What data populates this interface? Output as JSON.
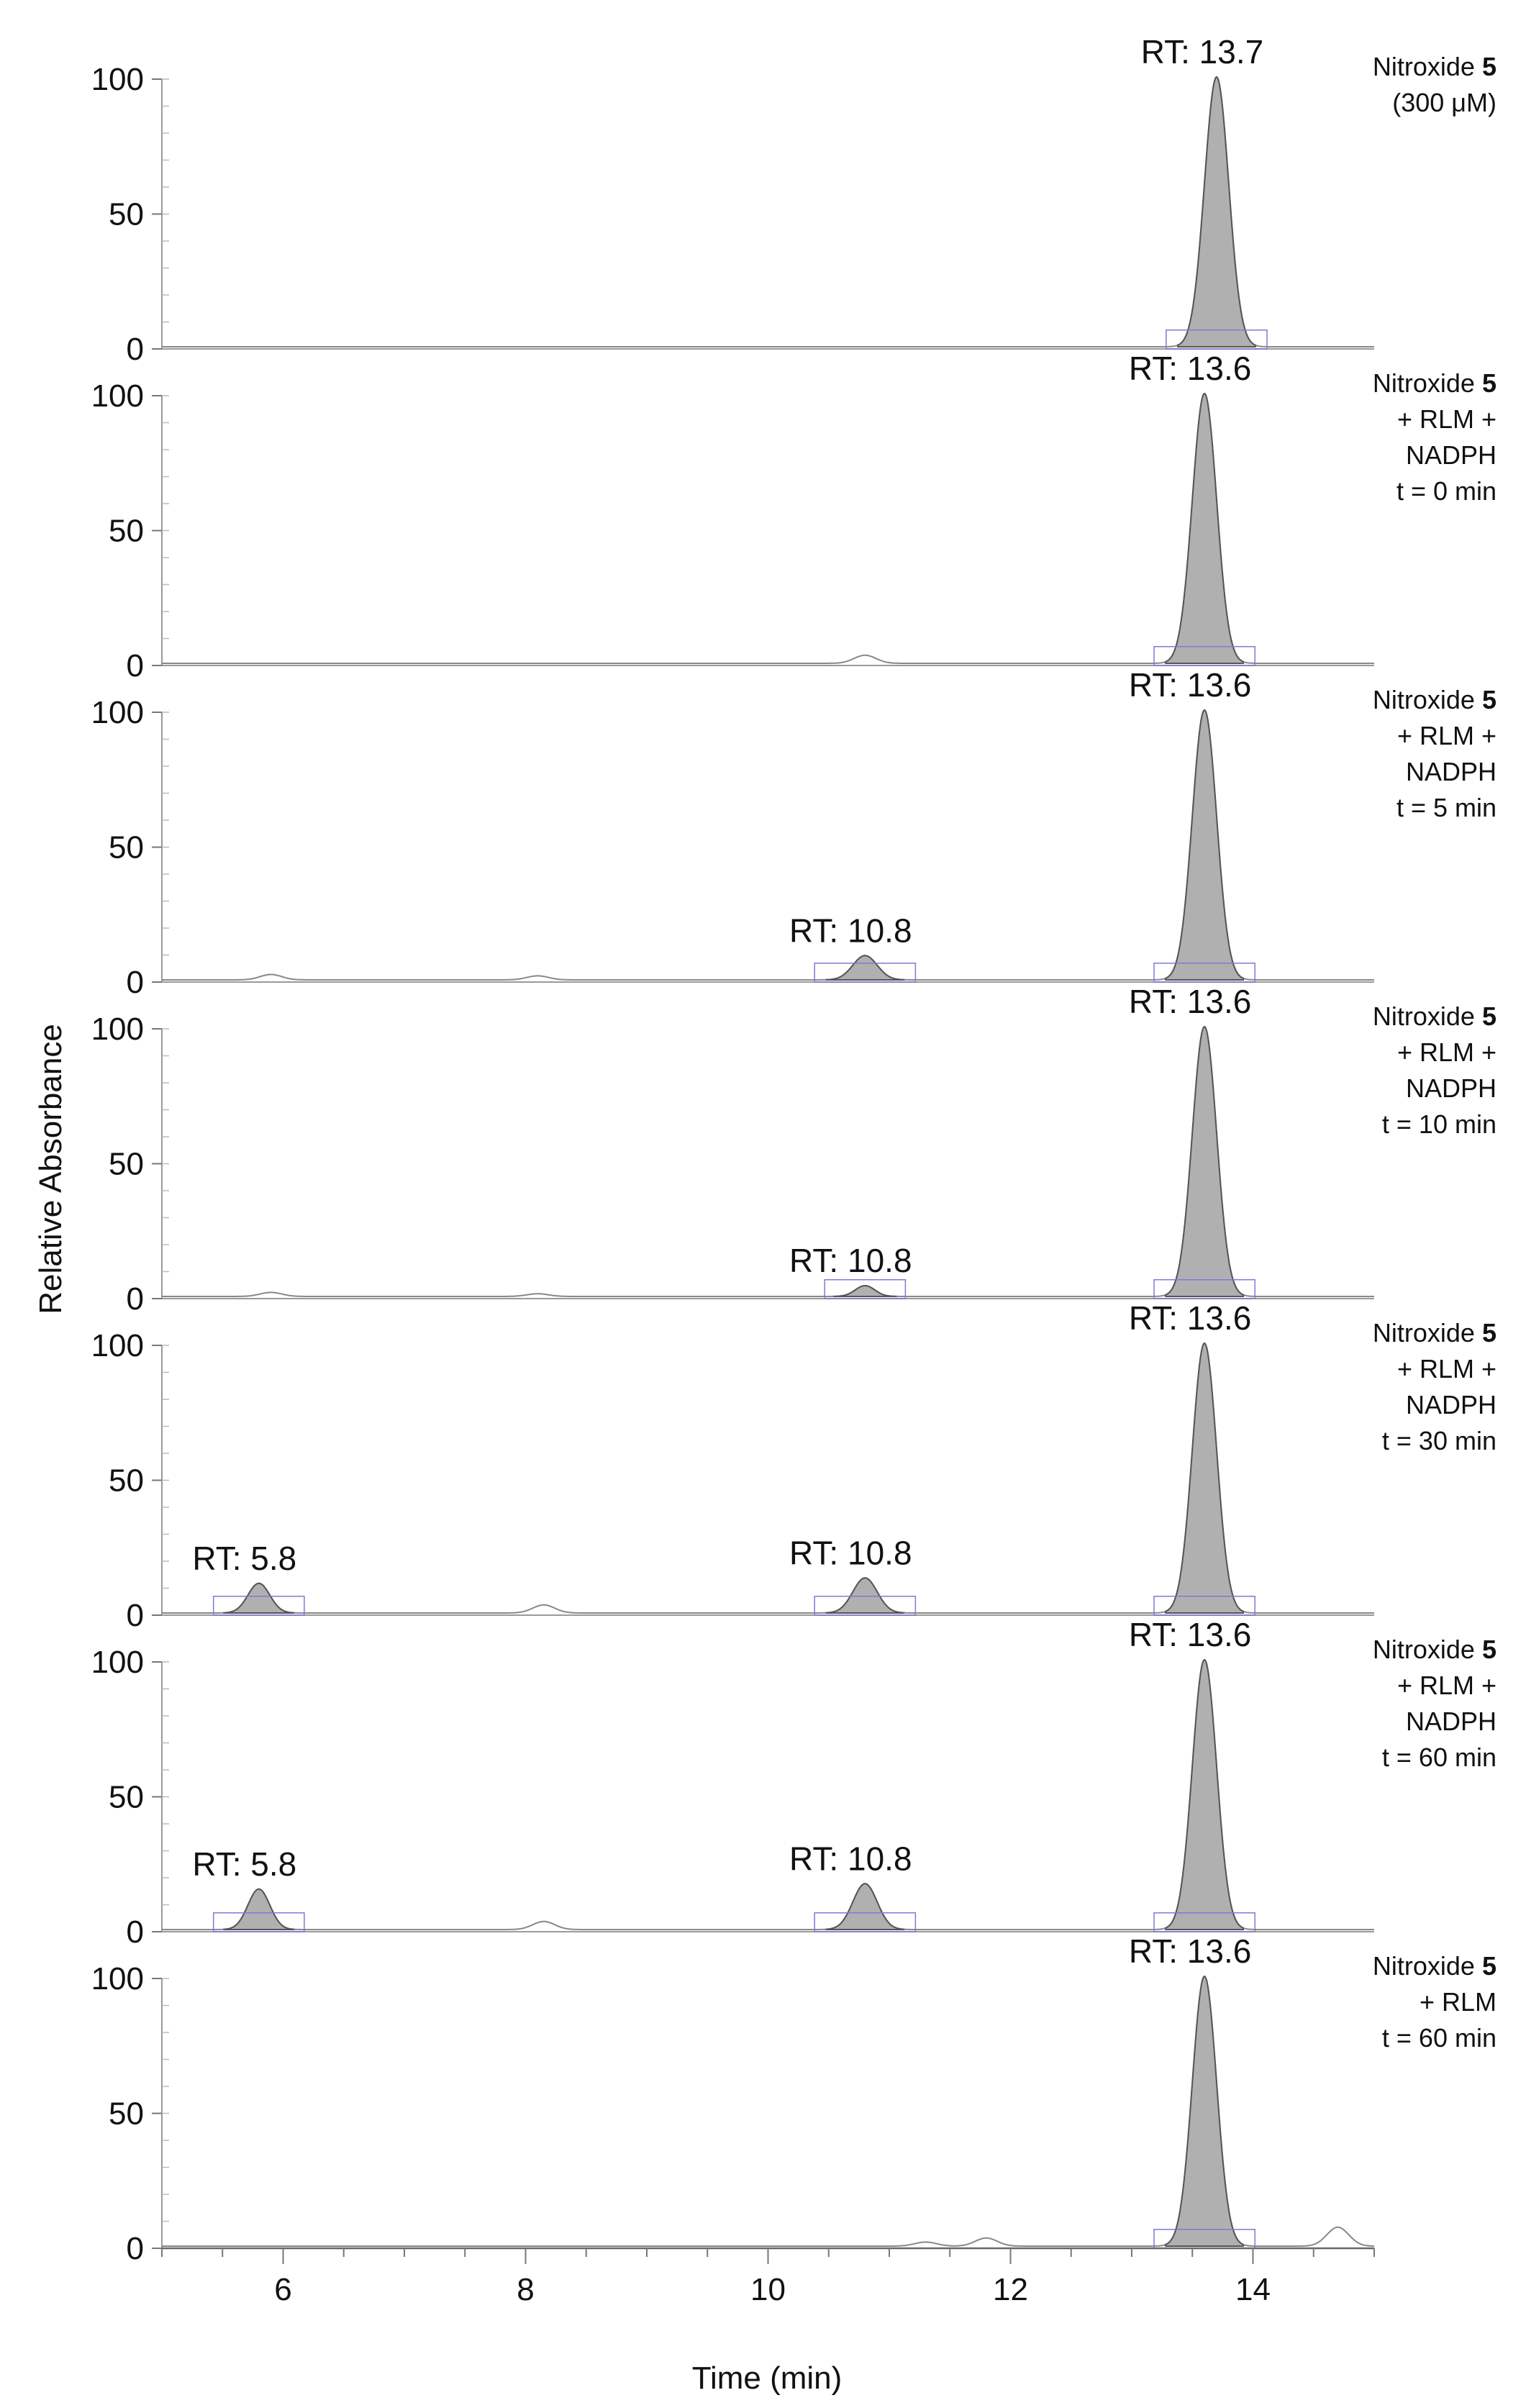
{
  "chart_data": {
    "type": "line",
    "title": "",
    "xlabel": "Time (min)",
    "ylabel": "Relative Absorbance",
    "xlim": [
      5,
      15
    ],
    "ylim": [
      0,
      100
    ],
    "x_ticks": [
      "6",
      "8",
      "10",
      "12",
      "14"
    ],
    "y_ticks": [
      "0",
      "50",
      "100"
    ],
    "grid": false,
    "panels": [
      {
        "label_lines": [
          [
            {
              "text": "Nitroxide ",
              "bold": false
            },
            {
              "text": "5",
              "bold": true
            }
          ],
          [
            {
              "text": "(300 μM)",
              "bold": false
            }
          ]
        ],
        "peaks": [
          {
            "rt": 13.7,
            "height": 100,
            "width": 0.1,
            "shaded": true,
            "label": "RT: 13.7"
          }
        ],
        "baseline_bumps": []
      },
      {
        "label_lines": [
          [
            {
              "text": "Nitroxide ",
              "bold": false
            },
            {
              "text": "5",
              "bold": true
            }
          ],
          [
            {
              "text": "+ RLM +",
              "bold": false
            }
          ],
          [
            {
              "text": "NADPH",
              "bold": false
            }
          ],
          [
            {
              "text": "t = 0 min",
              "bold": false
            }
          ]
        ],
        "peaks": [
          {
            "rt": 13.6,
            "height": 100,
            "width": 0.1,
            "shaded": true,
            "label": "RT: 13.6"
          }
        ],
        "baseline_bumps": [
          {
            "x": 10.8,
            "height": 3
          }
        ]
      },
      {
        "label_lines": [
          [
            {
              "text": "Nitroxide ",
              "bold": false
            },
            {
              "text": "5",
              "bold": true
            }
          ],
          [
            {
              "text": "+ RLM +",
              "bold": false
            }
          ],
          [
            {
              "text": "NADPH",
              "bold": false
            }
          ],
          [
            {
              "text": "t = 5 min",
              "bold": false
            }
          ]
        ],
        "peaks": [
          {
            "rt": 10.8,
            "height": 9,
            "width": 0.1,
            "shaded": true,
            "label": "RT: 10.8"
          },
          {
            "rt": 13.6,
            "height": 100,
            "width": 0.1,
            "shaded": true,
            "label": "RT: 13.6"
          }
        ],
        "baseline_bumps": [
          {
            "x": 5.9,
            "height": 2
          },
          {
            "x": 8.1,
            "height": 1.5
          }
        ]
      },
      {
        "label_lines": [
          [
            {
              "text": "Nitroxide ",
              "bold": false
            },
            {
              "text": "5",
              "bold": true
            }
          ],
          [
            {
              "text": "+ RLM +",
              "bold": false
            }
          ],
          [
            {
              "text": "NADPH",
              "bold": false
            }
          ],
          [
            {
              "text": "t = 10 min",
              "bold": false
            }
          ]
        ],
        "peaks": [
          {
            "rt": 10.8,
            "height": 4,
            "width": 0.08,
            "shaded": true,
            "label": "RT: 10.8"
          },
          {
            "rt": 13.6,
            "height": 100,
            "width": 0.1,
            "shaded": true,
            "label": "RT: 13.6"
          }
        ],
        "baseline_bumps": [
          {
            "x": 5.9,
            "height": 1.5
          },
          {
            "x": 8.1,
            "height": 1
          }
        ]
      },
      {
        "label_lines": [
          [
            {
              "text": "Nitroxide ",
              "bold": false
            },
            {
              "text": "5",
              "bold": true
            }
          ],
          [
            {
              "text": "+ RLM +",
              "bold": false
            }
          ],
          [
            {
              "text": "NADPH",
              "bold": false
            }
          ],
          [
            {
              "text": "t = 30 min",
              "bold": false
            }
          ]
        ],
        "peaks": [
          {
            "rt": 5.8,
            "height": 11,
            "width": 0.09,
            "shaded": true,
            "label": "RT: 5.8"
          },
          {
            "rt": 10.8,
            "height": 13,
            "width": 0.1,
            "shaded": true,
            "label": "RT: 10.8"
          },
          {
            "rt": 13.6,
            "height": 100,
            "width": 0.1,
            "shaded": true,
            "label": "RT: 13.6"
          }
        ],
        "baseline_bumps": [
          {
            "x": 8.15,
            "height": 3
          }
        ]
      },
      {
        "label_lines": [
          [
            {
              "text": "Nitroxide ",
              "bold": false
            },
            {
              "text": "5",
              "bold": true
            }
          ],
          [
            {
              "text": "+ RLM +",
              "bold": false
            }
          ],
          [
            {
              "text": "NADPH",
              "bold": false
            }
          ],
          [
            {
              "text": "t = 60 min",
              "bold": false
            }
          ]
        ],
        "peaks": [
          {
            "rt": 5.8,
            "height": 15,
            "width": 0.09,
            "shaded": true,
            "label": "RT: 5.8"
          },
          {
            "rt": 10.8,
            "height": 17,
            "width": 0.1,
            "shaded": true,
            "label": "RT: 10.8"
          },
          {
            "rt": 13.6,
            "height": 100,
            "width": 0.1,
            "shaded": true,
            "label": "RT: 13.6"
          }
        ],
        "baseline_bumps": [
          {
            "x": 8.15,
            "height": 3
          }
        ]
      },
      {
        "label_lines": [
          [
            {
              "text": "Nitroxide ",
              "bold": false
            },
            {
              "text": "5",
              "bold": true
            }
          ],
          [
            {
              "text": "+ RLM",
              "bold": false
            }
          ],
          [
            {
              "text": "t = 60 min",
              "bold": false
            }
          ]
        ],
        "peaks": [
          {
            "rt": 13.6,
            "height": 100,
            "width": 0.1,
            "shaded": true,
            "label": "RT: 13.6"
          }
        ],
        "baseline_bumps": [
          {
            "x": 11.8,
            "height": 3
          },
          {
            "x": 11.3,
            "height": 1.5
          },
          {
            "x": 14.7,
            "height": 7
          }
        ]
      }
    ]
  }
}
